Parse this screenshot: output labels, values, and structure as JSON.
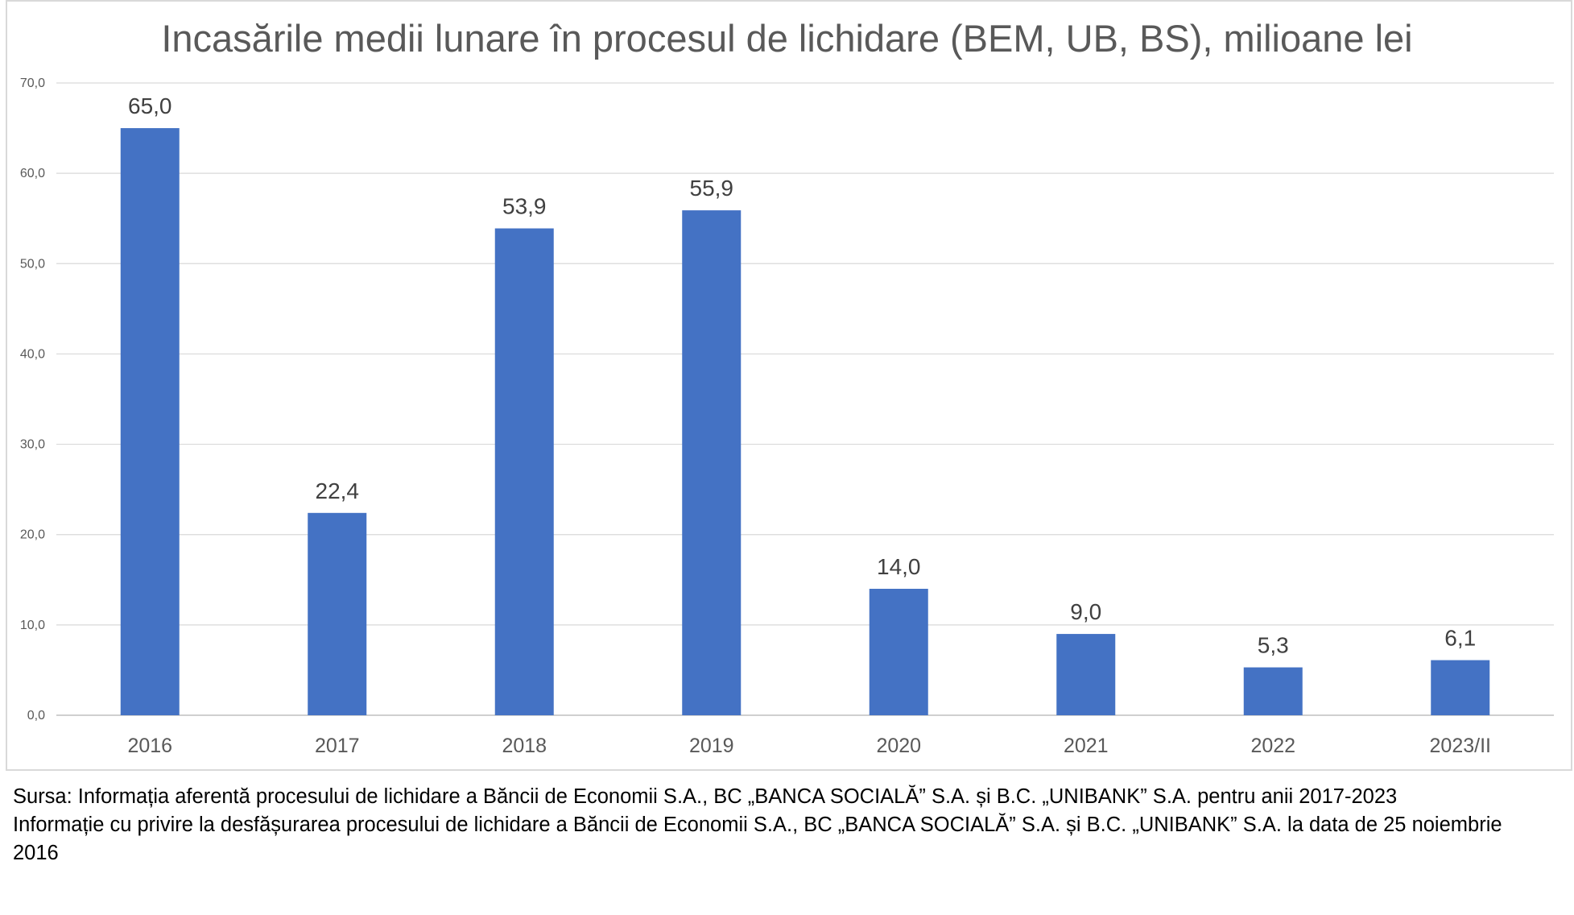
{
  "chart_data": {
    "type": "bar",
    "title": "Incasările medii lunare în procesul de lichidare (BEM, UB, BS), milioane lei",
    "categories": [
      "2016",
      "2017",
      "2018",
      "2019",
      "2020",
      "2021",
      "2022",
      "2023/II"
    ],
    "values": [
      65.0,
      22.4,
      53.9,
      55.9,
      14.0,
      9.0,
      5.3,
      6.1
    ],
    "value_labels": [
      "65,0",
      "22,4",
      "53,9",
      "55,9",
      "14,0",
      "9,0",
      "5,3",
      "6,1"
    ],
    "y_ticks": [
      0,
      10,
      20,
      30,
      40,
      50,
      60,
      70
    ],
    "y_tick_labels": [
      "0,0",
      "10,0",
      "20,0",
      "30,0",
      "40,0",
      "50,0",
      "60,0",
      "70,0"
    ],
    "ylim": [
      0,
      70
    ],
    "grid": true,
    "legend": "none",
    "bar_color": "#4472c4"
  },
  "notes": {
    "source": "Sursa: Informația aferentă procesului de lichidare a Băncii de Economii S.A., BC „BANCA SOCIALĂ” S.A. și B.C. „UNIBANK” S.A. pentru anii 2017-2023",
    "info": "Informație cu privire la desfășurarea procesului de lichidare a Băncii de Economii S.A., BC „BANCA SOCIALĂ” S.A. și B.C. „UNIBANK” S.A. la data de 25 noiembrie 2016"
  }
}
